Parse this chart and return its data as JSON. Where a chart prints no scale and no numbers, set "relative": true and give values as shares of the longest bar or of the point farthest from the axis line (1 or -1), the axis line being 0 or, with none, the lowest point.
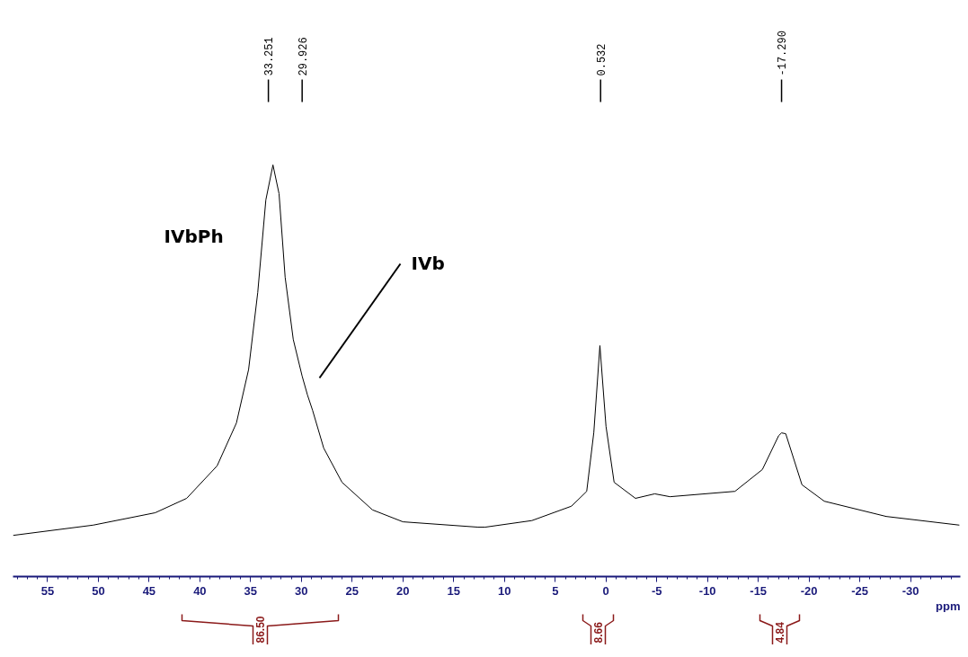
{
  "chart_data": {
    "type": "line",
    "relative": true,
    "xlabel": "ppm",
    "x": [
      58.4,
      50.5,
      44.4,
      41.3,
      38.3,
      36.4,
      35.2,
      34.3,
      33.5,
      32.8,
      32.2,
      31.6,
      30.8,
      29.926,
      29.4,
      28.9,
      27.8,
      26.0,
      23.0,
      20.0,
      12.6,
      11.9,
      7.3,
      3.4,
      1.9,
      1.2,
      0.6,
      0.0,
      -0.8,
      -2.9,
      -4.8,
      -6.3,
      -12.7,
      -15.4,
      -17.0,
      -17.29,
      -17.7,
      -19.3,
      -21.5,
      -27.6,
      -34.8
    ],
    "series": [
      {
        "color": "#000000",
        "values": [
          0.1,
          0.125,
          0.155,
          0.19,
          0.269,
          0.373,
          0.503,
          0.69,
          0.915,
          1,
          0.93,
          0.727,
          0.576,
          0.487,
          0.441,
          0.404,
          0.312,
          0.229,
          0.162,
          0.133,
          0.12,
          0.12,
          0.136,
          0.171,
          0.207,
          0.35,
          0.561,
          0.365,
          0.229,
          0.19,
          0.201,
          0.194,
          0.207,
          0.26,
          0.342,
          0.349,
          0.347,
          0.223,
          0.183,
          0.146,
          0.125
        ]
      }
    ],
    "xlim": [
      58.4,
      -34.9
    ],
    "xticks": [
      55,
      50,
      45,
      40,
      35,
      30,
      25,
      20,
      15,
      10,
      5,
      0,
      -5,
      -10,
      -15,
      -20,
      -25,
      -30
    ],
    "annotations": [
      {
        "text": "33.251",
        "x": 33.251
      },
      {
        "text": "29.926",
        "x": 29.926
      },
      {
        "text": "0.532",
        "x": 0.532
      },
      {
        "text": "-17.290",
        "x": -17.29
      },
      "IVbPh",
      "IVb",
      "86.50",
      "8.66",
      "4.84"
    ]
  }
}
